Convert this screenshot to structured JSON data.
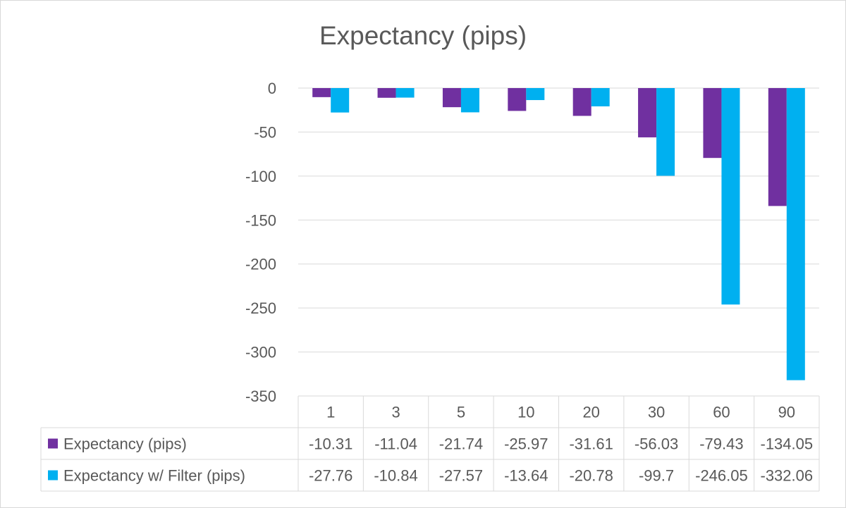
{
  "chart_data": {
    "type": "bar",
    "title": "Expectancy (pips)",
    "categories": [
      "1",
      "3",
      "5",
      "10",
      "20",
      "30",
      "60",
      "90"
    ],
    "series": [
      {
        "name": "Expectancy (pips)",
        "values": [
          -10.31,
          -11.04,
          -21.74,
          -25.97,
          -31.61,
          -56.03,
          -79.43,
          -134.05
        ],
        "labels": [
          "-10.31",
          "-11.04",
          "-21.74",
          "-25.97",
          "-31.61",
          "-56.03",
          "-79.43",
          "-134.05"
        ],
        "color": "#7030a0"
      },
      {
        "name": "Expectancy w/ Filter (pips)",
        "values": [
          -27.76,
          -10.84,
          -27.57,
          -13.64,
          -20.78,
          -99.7,
          -246.05,
          -332.06
        ],
        "labels": [
          "-27.76",
          "-10.84",
          "-27.57",
          "-13.64",
          "-20.78",
          "-99.7",
          "-246.05",
          "-332.06"
        ],
        "color": "#00b0f0"
      }
    ],
    "ylim": [
      -350,
      0
    ],
    "yticks": [
      0,
      -50,
      -100,
      -150,
      -200,
      -250,
      -300,
      -350
    ],
    "ytick_labels": [
      "0",
      "-50",
      "-100",
      "-150",
      "-200",
      "-250",
      "-300",
      "-350"
    ],
    "grid": true,
    "legend": "data-table"
  }
}
